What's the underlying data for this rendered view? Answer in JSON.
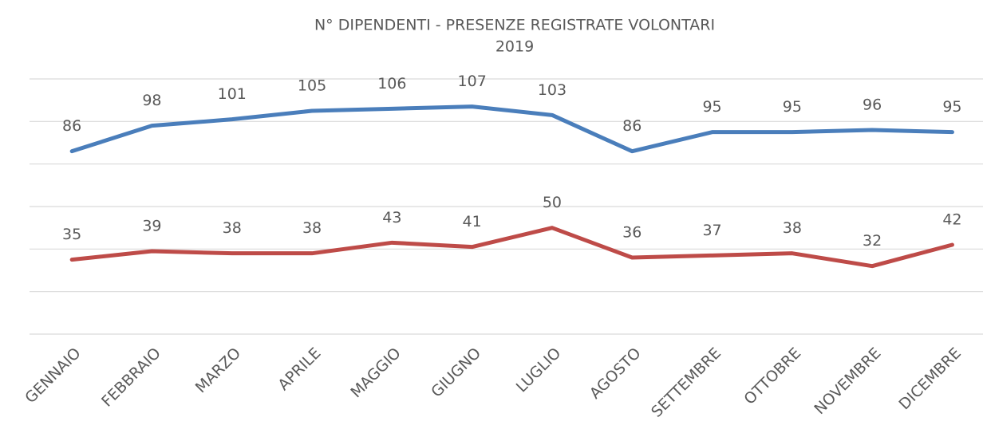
{
  "chart_data": {
    "type": "line",
    "title": "N° DIPENDENTI - PRESENZE REGISTRATE VOLONTARI",
    "subtitle": "2019",
    "categories": [
      "GENNAIO",
      "FEBBRAIO",
      "MARZO",
      "APRILE",
      "MAGGIO",
      "GIUGNO",
      "LUGLIO",
      "AGOSTO",
      "SETTEMBRE",
      "OTTOBRE",
      "NOVEMBRE",
      "DICEMBRE"
    ],
    "series": [
      {
        "color": "#4a7ebb",
        "values": [
          86,
          98,
          101,
          105,
          106,
          107,
          103,
          86,
          95,
          95,
          96,
          95
        ]
      },
      {
        "color": "#be4b48",
        "values": [
          35,
          39,
          38,
          38,
          43,
          41,
          50,
          36,
          37,
          38,
          32,
          42
        ]
      }
    ],
    "ylim": [
      0,
      120
    ],
    "yticks": [
      0,
      20,
      40,
      60,
      80,
      100,
      120
    ],
    "grid": true
  }
}
